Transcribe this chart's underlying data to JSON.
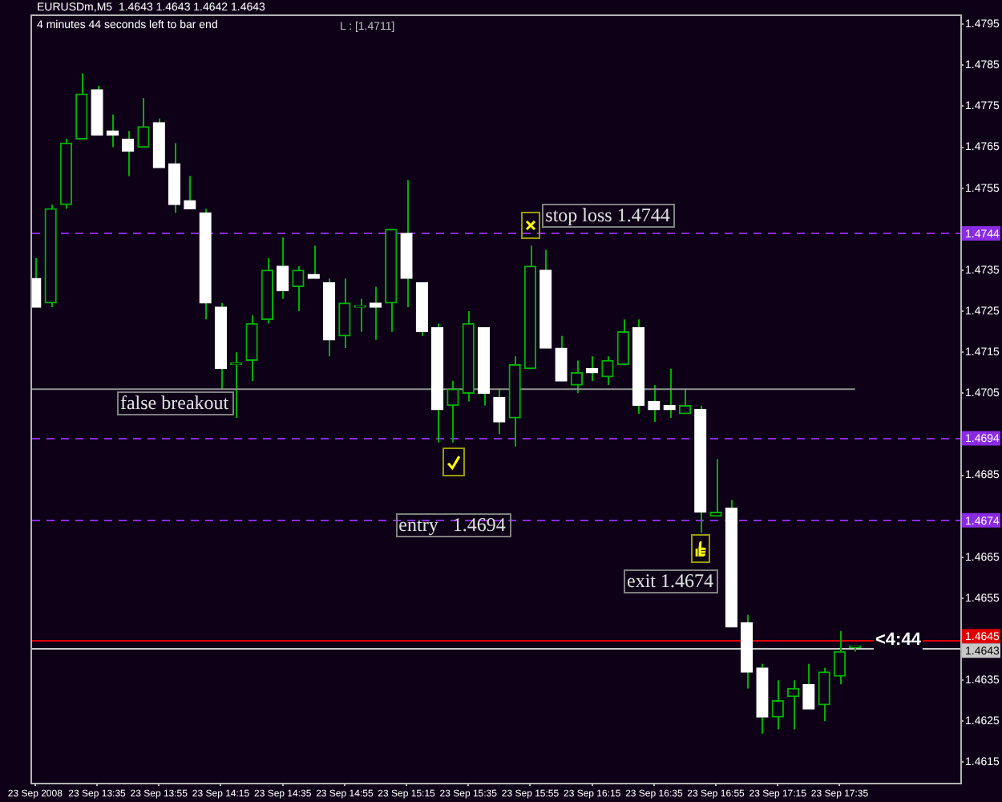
{
  "chart_data": {
    "type": "candlestick",
    "title": "EURUSDm,M5  1.4643 1.4643 1.4642 1.4643",
    "subtitle": "4 minutes 44 seconds left to bar end",
    "series": [
      {
        "color": "#00b000",
        "colors": [
          "#ffffff",
          "#00b000",
          "#00b000",
          "#00b000",
          "#ffffff",
          "#ffffff",
          "#ffffff",
          "#00b000",
          "#ffffff",
          "#ffffff",
          "#ffffff",
          "#ffffff",
          "#ffffff",
          "#00b000",
          "#00b000",
          "#00b000",
          "#ffffff",
          "#00b000",
          "#ffffff",
          "#ffffff",
          "#00b000",
          "#00b000",
          "#ffffff",
          "#00b000",
          "#ffffff",
          "#ffffff",
          "#ffffff",
          "#00b000",
          "#00b000",
          "#ffffff",
          "#ffffff",
          "#00b000",
          "#00b000",
          "#ffffff",
          "#ffffff",
          "#00b000",
          "#ffffff",
          "#00b000",
          "#00b000",
          "#ffffff",
          "#ffffff",
          "#ffffff",
          "#00b000",
          "#ffffff",
          "#00b000",
          "#ffffff",
          "#ffffff",
          "#ffffff",
          "#00b000",
          "#00b000",
          "#ffffff",
          "#00b000",
          "#00b000",
          "#00b000"
        ],
        "x": [
          "2008-09-23T13:15",
          "2008-09-23T13:20",
          "2008-09-23T13:25",
          "2008-09-23T13:30",
          "2008-09-23T13:35",
          "2008-09-23T13:40",
          "2008-09-23T13:45",
          "2008-09-23T13:50",
          "2008-09-23T13:55",
          "2008-09-23T14:00",
          "2008-09-23T14:05",
          "2008-09-23T14:10",
          "2008-09-23T14:15",
          "2008-09-23T14:20",
          "2008-09-23T14:25",
          "2008-09-23T14:30",
          "2008-09-23T14:35",
          "2008-09-23T14:40",
          "2008-09-23T14:45",
          "2008-09-23T14:50",
          "2008-09-23T14:55",
          "2008-09-23T15:00",
          "2008-09-23T15:05",
          "2008-09-23T15:10",
          "2008-09-23T15:15",
          "2008-09-23T15:20",
          "2008-09-23T15:25",
          "2008-09-23T15:30",
          "2008-09-23T15:35",
          "2008-09-23T15:40",
          "2008-09-23T15:45",
          "2008-09-23T15:50",
          "2008-09-23T15:55",
          "2008-09-23T16:00",
          "2008-09-23T16:05",
          "2008-09-23T16:10",
          "2008-09-23T16:15",
          "2008-09-23T16:20",
          "2008-09-23T16:25",
          "2008-09-23T16:30",
          "2008-09-23T16:35",
          "2008-09-23T16:40",
          "2008-09-23T16:45",
          "2008-09-23T16:50",
          "2008-09-23T16:55",
          "2008-09-23T17:00",
          "2008-09-23T17:05",
          "2008-09-23T17:10",
          "2008-09-23T17:15",
          "2008-09-23T17:20",
          "2008-09-23T17:25",
          "2008-09-23T17:30",
          "2008-09-23T17:35",
          "2008-09-23T17:40"
        ],
        "ohlc": [
          [
            1.4733,
            1.4738,
            1.4726,
            1.4726
          ],
          [
            1.4727,
            1.4751,
            1.4726,
            1.475
          ],
          [
            1.4751,
            1.4767,
            1.475,
            1.4766
          ],
          [
            1.4767,
            1.4783,
            1.4767,
            1.4778
          ],
          [
            1.4779,
            1.478,
            1.4768,
            1.4768
          ],
          [
            1.4769,
            1.4773,
            1.4765,
            1.4768
          ],
          [
            1.4767,
            1.4769,
            1.4758,
            1.4764
          ],
          [
            1.4765,
            1.4777,
            1.4765,
            1.477
          ],
          [
            1.4771,
            1.4772,
            1.476,
            1.476
          ],
          [
            1.4761,
            1.4766,
            1.4749,
            1.4751
          ],
          [
            1.4752,
            1.4758,
            1.475,
            1.475
          ],
          [
            1.4749,
            1.475,
            1.4723,
            1.4727
          ],
          [
            1.4726,
            1.4727,
            1.4706,
            1.4711
          ],
          [
            1.4712,
            1.4715,
            1.4699,
            1.4712
          ],
          [
            1.4713,
            1.4724,
            1.4708,
            1.4722
          ],
          [
            1.4723,
            1.4738,
            1.4722,
            1.4735
          ],
          [
            1.4736,
            1.4743,
            1.4728,
            1.473
          ],
          [
            1.4731,
            1.4736,
            1.4725,
            1.4735
          ],
          [
            1.4734,
            1.4741,
            1.4733,
            1.4733
          ],
          [
            1.4732,
            1.4733,
            1.4714,
            1.4718
          ],
          [
            1.4719,
            1.4733,
            1.4716,
            1.4727
          ],
          [
            1.4726,
            1.4728,
            1.472,
            1.4726
          ],
          [
            1.4727,
            1.4731,
            1.4718,
            1.4726
          ],
          [
            1.4727,
            1.4745,
            1.472,
            1.4745
          ],
          [
            1.4744,
            1.4757,
            1.4726,
            1.4733
          ],
          [
            1.4732,
            1.4732,
            1.4719,
            1.472
          ],
          [
            1.4721,
            1.4722,
            1.4693,
            1.4701
          ],
          [
            1.4702,
            1.4708,
            1.4693,
            1.4706
          ],
          [
            1.4705,
            1.4725,
            1.4703,
            1.4722
          ],
          [
            1.4721,
            1.4721,
            1.4702,
            1.4705
          ],
          [
            1.4704,
            1.4706,
            1.4695,
            1.4698
          ],
          [
            1.4699,
            1.4714,
            1.4692,
            1.4712
          ],
          [
            1.4711,
            1.4741,
            1.4711,
            1.4736
          ],
          [
            1.4735,
            1.474,
            1.4716,
            1.4716
          ],
          [
            1.4716,
            1.4719,
            1.4708,
            1.4708
          ],
          [
            1.4707,
            1.4713,
            1.4705,
            1.471
          ],
          [
            1.4711,
            1.4714,
            1.4708,
            1.471
          ],
          [
            1.4709,
            1.4714,
            1.4707,
            1.4713
          ],
          [
            1.4712,
            1.4723,
            1.4712,
            1.472
          ],
          [
            1.4721,
            1.4723,
            1.47,
            1.4702
          ],
          [
            1.4703,
            1.4707,
            1.4698,
            1.4701
          ],
          [
            1.4702,
            1.4711,
            1.4699,
            1.4701
          ],
          [
            1.47,
            1.4706,
            1.47,
            1.4702
          ],
          [
            1.4701,
            1.4702,
            1.4671,
            1.4676
          ],
          [
            1.4675,
            1.4689,
            1.4675,
            1.4676
          ],
          [
            1.4677,
            1.4679,
            1.4648,
            1.4648
          ],
          [
            1.4649,
            1.4651,
            1.4633,
            1.4637
          ],
          [
            1.4638,
            1.4639,
            1.4622,
            1.4626
          ],
          [
            1.4626,
            1.4635,
            1.4623,
            1.463
          ],
          [
            1.4631,
            1.4635,
            1.4623,
            1.4633
          ],
          [
            1.4634,
            1.4639,
            1.4628,
            1.4628
          ],
          [
            1.4629,
            1.4638,
            1.4625,
            1.4637
          ],
          [
            1.4636,
            1.4647,
            1.4634,
            1.4642
          ],
          [
            1.4643,
            1.4643,
            1.4642,
            1.4643
          ]
        ]
      },
      {
        "type": "line",
        "color": "#909090",
        "x": [
          "2008-09-23T13:14",
          "2008-09-23T17:40"
        ],
        "values": [
          1.4706,
          1.4706
        ]
      }
    ],
    "xlim": [
      "2008-09-23T13:14",
      "2008-09-23T18:14"
    ],
    "xticks": [
      {
        "value": "2008-09-23T13:15",
        "label": "23 Sep 2008"
      },
      {
        "value": "2008-09-23T13:35",
        "label": "23 Sep 13:35"
      },
      {
        "value": "2008-09-23T13:55",
        "label": "23 Sep 13:55"
      },
      {
        "value": "2008-09-23T14:15",
        "label": "23 Sep 14:15"
      },
      {
        "value": "2008-09-23T14:35",
        "label": "23 Sep 14:35"
      },
      {
        "value": "2008-09-23T14:55",
        "label": "23 Sep 14:55"
      },
      {
        "value": "2008-09-23T15:15",
        "label": "23 Sep 15:15"
      },
      {
        "value": "2008-09-23T15:35",
        "label": "23 Sep 15:35"
      },
      {
        "value": "2008-09-23T15:55",
        "label": "23 Sep 15:55"
      },
      {
        "value": "2008-09-23T16:15",
        "label": "23 Sep 16:15"
      },
      {
        "value": "2008-09-23T16:35",
        "label": "23 Sep 16:35"
      },
      {
        "value": "2008-09-23T16:55",
        "label": "23 Sep 16:55"
      },
      {
        "value": "2008-09-23T17:15",
        "label": "23 Sep 17:15"
      },
      {
        "value": "2008-09-23T17:35",
        "label": "23 Sep 17:35"
      }
    ],
    "ylim": [
      1.461,
      1.4797
    ],
    "yticks": [
      1.4615,
      1.4625,
      1.4635,
      1.4655,
      1.4665,
      1.4685,
      1.4705,
      1.4715,
      1.4725,
      1.4735,
      1.4755,
      1.4765,
      1.4775,
      1.4785,
      1.4795
    ],
    "ref_lines": [
      {
        "axis": "y",
        "value": 1.4744,
        "label": "1.4744",
        "color": "#8a2be2",
        "line_style": "dashed"
      },
      {
        "axis": "y",
        "value": 1.4694,
        "label": "1.4694",
        "color": "#8a2be2",
        "line_style": "dashed"
      },
      {
        "axis": "y",
        "value": 1.4674,
        "label": "1.4674",
        "color": "#8a2be2",
        "line_style": "dashed"
      },
      {
        "axis": "y",
        "value": 1.4645,
        "label": "1.4645",
        "color": "#e00000"
      },
      {
        "axis": "y",
        "value": 1.4643,
        "label": "1.4643",
        "color": "#c8c8c8"
      }
    ],
    "annotations": [
      "L : [1.4711]",
      "<4:44",
      {
        "text": "false breakout",
        "x": "2008-09-23T14:00",
        "y": 1.4706
      },
      "stop loss 1.4744",
      "entry   1.4694",
      "exit 1.4674"
    ]
  }
}
